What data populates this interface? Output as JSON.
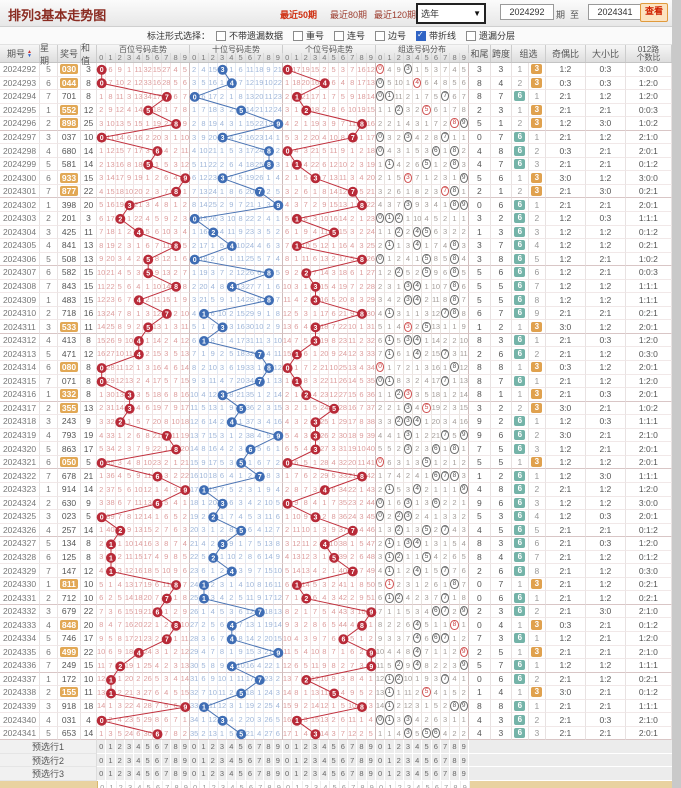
{
  "title": "排列3基本走势图",
  "toolbar": {
    "range_links": [
      "最近50期",
      "最近80期",
      "最近120期"
    ],
    "year_select_value": "选年",
    "from_issue": "2024292",
    "from_issue_suffix": "期",
    "to_label": "至",
    "to_issue": "2024341",
    "to_issue_suffix": "期",
    "view_button": "查看"
  },
  "options": {
    "label": "标注形式选择：",
    "checkboxes": [
      {
        "label": "不带遗漏数据",
        "checked": false
      },
      {
        "label": "重号",
        "checked": false
      },
      {
        "label": "连号",
        "checked": false
      },
      {
        "label": "边号",
        "checked": false
      },
      {
        "label": "带折线",
        "checked": true
      },
      {
        "label": "遗漏分层",
        "checked": false
      }
    ]
  },
  "columns": {
    "issue": "期号",
    "week": "星期",
    "number": "奖号",
    "sum": "和值",
    "groups": [
      "百位号码走势",
      "十位号码走势",
      "个位号码走势",
      "组选号码分布"
    ],
    "digits": [
      "0",
      "1",
      "2",
      "3",
      "4",
      "5",
      "6",
      "7",
      "8",
      "9"
    ],
    "sum_tail": "和尾",
    "span": "跨度",
    "group_sel": "组选",
    "odd_even": "奇偶比",
    "big_small": "大小比",
    "r012_line1": "012路",
    "r012_line2": "个数比"
  },
  "chart_data": {
    "type": "table",
    "first_issue": 2024292,
    "first_week": 5,
    "draws": [
      "030",
      "044",
      "701",
      "552",
      "898",
      "037",
      "680",
      "581",
      "933",
      "877",
      "398",
      "201",
      "425",
      "841",
      "508",
      "582",
      "843",
      "483",
      "718",
      "533",
      "413",
      "471",
      "080",
      "071",
      "332",
      "355",
      "243",
      "793",
      "863",
      "050",
      "678",
      "914",
      "630",
      "023",
      "257",
      "134",
      "125",
      "147",
      "811",
      "712",
      "679",
      "848",
      "746",
      "499",
      "249",
      "172",
      "155",
      "918",
      "031",
      "653"
    ],
    "initial_miss": {
      "hundreds": [
        0,
        5,
        8,
        0,
        10,
        31,
        14,
        26,
        3,
        4
      ],
      "tens": [
        1,
        3,
        14,
        0,
        0,
        5,
        10,
        17,
        8,
        20
      ],
      "units": [
        0,
        16,
        18,
        14,
        1,
        4,
        2,
        6,
        15,
        11
      ],
      "group": [
        0,
        3,
        8,
        0,
        0,
        4,
        2,
        6,
        3,
        4
      ],
      "zu3": 0,
      "zu6": 0
    },
    "badge_zu3": "3",
    "badge_zu6": "6"
  },
  "footer_rows": [
    "预选行1",
    "预选行2",
    "预选行3"
  ],
  "colors": {
    "line_red": "#c1303d",
    "line_blue": "#4a74b4",
    "circle_red": "#b82a38",
    "circle_blue": "#3f6db4",
    "zu3_badge": "#e0a14e",
    "zu6_badge": "#74b3a8",
    "zu3_number_bg": "#e2a855"
  }
}
